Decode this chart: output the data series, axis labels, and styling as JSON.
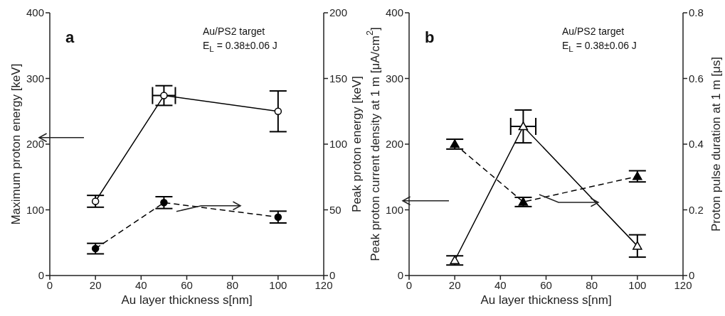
{
  "chart_data": [
    {
      "type": "line",
      "xlabel": "Au layer thickness s[nm]",
      "ylabel": "Maximum proton energy [keV]",
      "y2label": "Peak proton energy [keV]",
      "annotations": [
        "a",
        "Au/PS2 target",
        "E$_{L}$ = 0.38±0.06 J"
      ],
      "xlim": [
        0,
        120
      ],
      "xticks": [
        0,
        20,
        40,
        60,
        80,
        100,
        120
      ],
      "ylim": [
        0,
        400
      ],
      "yticks": [
        0,
        100,
        200,
        300,
        400
      ],
      "y2lim": [
        0,
        200
      ],
      "y2ticks": [
        0,
        50,
        100,
        150,
        200
      ],
      "series": [
        {
          "color": "#000000",
          "x": [
            20,
            50,
            100
          ],
          "values": [
            113,
            274,
            250
          ],
          "errors": [
            9,
            15,
            31
          ],
          "xerrors": [
            null,
            5,
            null
          ],
          "marker": "circle",
          "line_style": "solid"
        },
        {
          "color": "#000000",
          "axis": "y2",
          "x": [
            20,
            50,
            100
          ],
          "values": [
            20.5,
            55.5,
            44.5
          ],
          "errors": [
            4,
            4.5,
            4.5
          ],
          "marker": "circle",
          "line_style": "dashed"
        }
      ]
    },
    {
      "type": "line",
      "xlabel": "Au layer thickness s[nm]",
      "ylabel": "Peak proton current density at 1 m [μA/cm$^{2}$]",
      "y2label": "Proton pulse duration at 1 m [μs]",
      "annotations": [
        "b",
        "Au/PS2 target",
        "E$_{L}$ = 0.38±0.06 J"
      ],
      "xlim": [
        0,
        120
      ],
      "xticks": [
        0,
        20,
        40,
        60,
        80,
        100,
        120
      ],
      "ylim": [
        0,
        400
      ],
      "yticks": [
        0,
        100,
        200,
        300,
        400
      ],
      "y2lim": [
        0,
        0.8
      ],
      "y2ticks": [
        0,
        0.2,
        0.4,
        0.6,
        0.8
      ],
      "series": [
        {
          "color": "#000000",
          "x": [
            20,
            50,
            100
          ],
          "values": [
            23,
            227,
            45
          ],
          "errors": [
            7,
            25,
            17
          ],
          "xerrors": [
            null,
            5.5,
            null
          ],
          "marker": "triangle",
          "line_style": "solid"
        },
        {
          "color": "#000000",
          "axis": "y2",
          "x": [
            20,
            50,
            100
          ],
          "values": [
            0.4,
            0.224,
            0.302
          ],
          "errors": [
            0.015,
            0.014,
            0.017
          ],
          "marker": "triangle",
          "line_style": "dashed"
        }
      ]
    }
  ]
}
